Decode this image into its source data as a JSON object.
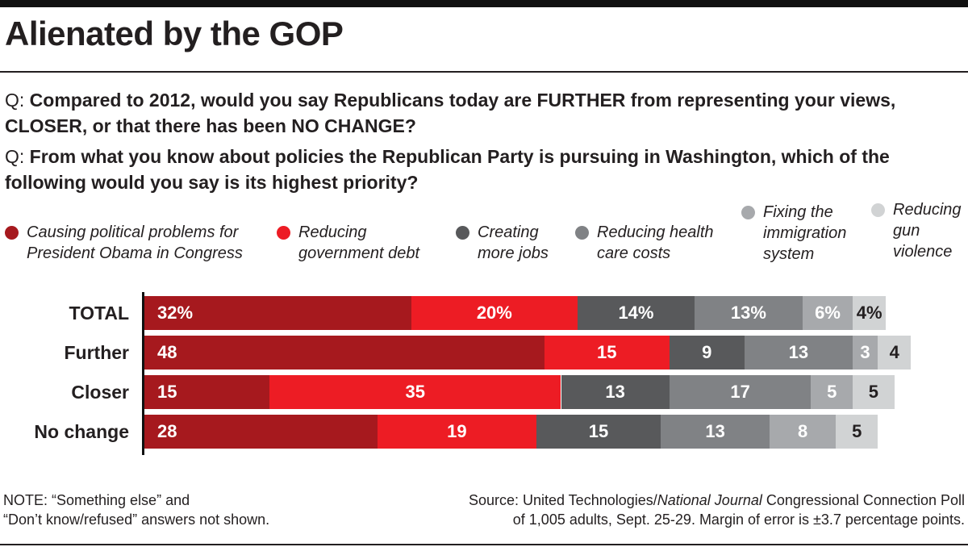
{
  "title": "Alienated by the GOP",
  "questions": [
    {
      "label": "Q:",
      "text": "Compared to 2012, would you say Republicans today are FURTHER from representing your views, CLOSER, or that there has been NO CHANGE?"
    },
    {
      "label": "Q:",
      "text": "From what you know about policies the Republican Party is pursuing in Washington, which of the following would you say is its highest priority?"
    }
  ],
  "legend": [
    {
      "line1": "Causing political problems for",
      "line2": "President Obama in Congress",
      "line3": ""
    },
    {
      "line1": "Reducing",
      "line2": "government debt",
      "line3": ""
    },
    {
      "line1": "Creating",
      "line2": "more jobs",
      "line3": ""
    },
    {
      "line1": "Reducing health",
      "line2": "care costs",
      "line3": ""
    },
    {
      "line1": "Fixing the",
      "line2": "immigration",
      "line3": "system"
    },
    {
      "line1": "Reducing",
      "line2": "gun",
      "line3": "violence"
    }
  ],
  "chart_data": {
    "type": "bar",
    "orientation": "horizontal",
    "stacked": true,
    "categories": [
      "TOTAL",
      "Further",
      "Closer",
      "No change"
    ],
    "series": [
      {
        "name": "Causing political problems for President Obama in Congress",
        "color": "#a6191e",
        "text_color": "#ffffff",
        "values": [
          32,
          48,
          15,
          28
        ],
        "labels": [
          "32%",
          "48",
          "15",
          "28"
        ]
      },
      {
        "name": "Reducing government debt",
        "color": "#ed1c24",
        "text_color": "#ffffff",
        "values": [
          20,
          15,
          35,
          19
        ],
        "labels": [
          "20%",
          "15",
          "35",
          "19"
        ]
      },
      {
        "name": "Creating more jobs",
        "color": "#58595b",
        "text_color": "#ffffff",
        "values": [
          14,
          9,
          13,
          15
        ],
        "labels": [
          "14%",
          "9",
          "13",
          "15"
        ]
      },
      {
        "name": "Reducing health care costs",
        "color": "#808285",
        "text_color": "#ffffff",
        "values": [
          13,
          13,
          17,
          13
        ],
        "labels": [
          "13%",
          "13",
          "17",
          "13"
        ]
      },
      {
        "name": "Fixing the immigration system",
        "color": "#a7a9ac",
        "text_color": "#ffffff",
        "values": [
          6,
          3,
          5,
          8
        ],
        "labels": [
          "6%",
          "3",
          "5",
          "8"
        ]
      },
      {
        "name": "Reducing gun violence",
        "color": "#d1d3d4",
        "text_color": "#231f20",
        "values": [
          4,
          4,
          5,
          5
        ],
        "labels": [
          "4%",
          "4",
          "5",
          "5"
        ]
      }
    ],
    "xlim": [
      0,
      100
    ]
  },
  "note": {
    "line1": "NOTE: “Something else” and",
    "line2": "“Don’t know/refused” answers not shown."
  },
  "source": {
    "line1_prefix": "Source: United Technologies/",
    "line1_italic": "National Journal",
    "line1_suffix": " Congressional Connection Poll",
    "line2": "of 1,005 adults, Sept. 25-29. Margin of error is ±3.7 percentage points."
  }
}
